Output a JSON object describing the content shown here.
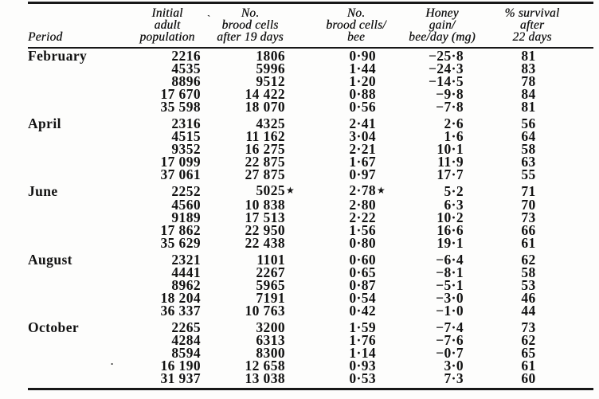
{
  "table": {
    "columns": [
      {
        "id": "period",
        "label": "Period"
      },
      {
        "id": "initial_adult_population",
        "lines": [
          "Initial",
          "adult",
          "population"
        ]
      },
      {
        "id": "no_brood_cells_after_19_days",
        "lines": [
          "No.",
          "brood cells",
          "after 19 days"
        ]
      },
      {
        "id": "no_brood_cells_per_bee",
        "lines": [
          "No.",
          "brood cells/",
          "bee"
        ]
      },
      {
        "id": "honey_gain_per_bee_per_day_mg",
        "lines": [
          "Honey",
          "gain/",
          "bee/day (mg)"
        ]
      },
      {
        "id": "pct_survival_after_22_days",
        "lines": [
          "% survival",
          "after",
          "22 days"
        ]
      }
    ],
    "groups": [
      {
        "period": "February",
        "rows": [
          [
            "2216",
            "1806",
            "0·90",
            "−25·8",
            "81"
          ],
          [
            "4535",
            "5996",
            "1·44",
            "−24·3",
            "83"
          ],
          [
            "8896",
            "9512",
            "1·20",
            "−14·5",
            "78"
          ],
          [
            "17 670",
            "14 422",
            "0·88",
            "−9·8",
            "84"
          ],
          [
            "35 598",
            "18 070",
            "0·56",
            "−7·8",
            "81"
          ]
        ]
      },
      {
        "period": "April",
        "rows": [
          [
            "2316",
            "4325",
            "2·41",
            "2·6",
            "56"
          ],
          [
            "4515",
            "11 162",
            "3·04",
            "1·6",
            "64"
          ],
          [
            "9352",
            "16 275",
            "2·21",
            "10·1",
            "58"
          ],
          [
            "17 099",
            "22 875",
            "1·67",
            "11·9",
            "63"
          ],
          [
            "37 061",
            "27 875",
            "0·97",
            "17·7",
            "55"
          ]
        ]
      },
      {
        "period": "June",
        "rows": [
          [
            "2252",
            "5025★",
            "2·78★",
            "5·2",
            "71"
          ],
          [
            "4560",
            "10 838",
            "2·80",
            "6·3",
            "70"
          ],
          [
            "9189",
            "17 513",
            "2·22",
            "10·2",
            "73"
          ],
          [
            "17 862",
            "22 950",
            "1·56",
            "16·6",
            "66"
          ],
          [
            "35 629",
            "22 438",
            "0·80",
            "19·1",
            "61"
          ]
        ]
      },
      {
        "period": "August",
        "rows": [
          [
            "2321",
            "1101",
            "0·60",
            "−6·4",
            "62"
          ],
          [
            "4441",
            "2267",
            "0·65",
            "−8·1",
            "58"
          ],
          [
            "8962",
            "5965",
            "0·87",
            "−5·1",
            "53"
          ],
          [
            "18 204",
            "7191",
            "0·54",
            "−3·0",
            "46"
          ],
          [
            "36 337",
            "10 763",
            "0·42",
            "−1·0",
            "44"
          ]
        ]
      },
      {
        "period": "October",
        "rows": [
          [
            "2265",
            "3200",
            "1·59",
            "−7·4",
            "73"
          ],
          [
            "4284",
            "6313",
            "1·76",
            "−7·6",
            "62"
          ],
          [
            "8594",
            "8300",
            "1·14",
            "−0·7",
            "65"
          ],
          [
            "16 190",
            "12 658",
            "0·93",
            "3·0",
            "61"
          ],
          [
            "31 937",
            "13 038",
            "0·53",
            "7·3",
            "60"
          ]
        ]
      }
    ],
    "footnote_marker": "★",
    "scan_artifacts": {
      "tick": "`",
      "dot": "."
    }
  }
}
